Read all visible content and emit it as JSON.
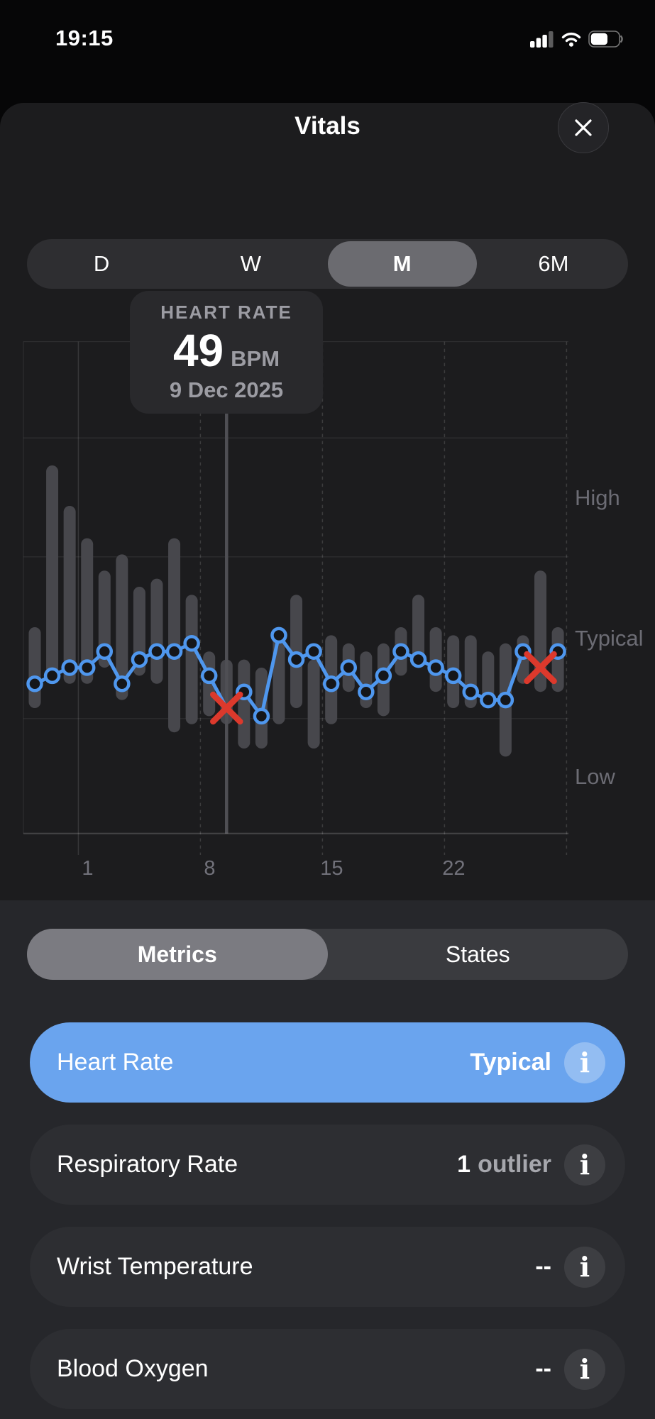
{
  "status_bar": {
    "time": "19:15",
    "signal_bars_filled": 3,
    "signal_bars_total": 4,
    "wifi_strength": "full",
    "battery_fill": 0.62
  },
  "header": {
    "title": "Vitals",
    "close_icon": "x"
  },
  "range_selector": {
    "options": [
      "D",
      "W",
      "M",
      "6M"
    ],
    "selected": "M"
  },
  "tooltip": {
    "label": "HEART RATE",
    "value": "49",
    "unit": "BPM",
    "date": "9 Dec 2025"
  },
  "chart_data": {
    "type": "line",
    "title": "Heart Rate",
    "unit": "BPM",
    "legend_position": "none",
    "grid": true,
    "ylim_bpm": [
      33.5,
      94.3
    ],
    "gridlines_bpm": [
      94.3,
      82.4,
      67.7,
      47.7
    ],
    "zones": [
      {
        "label": "High",
        "bpm_range": [
          67.7,
          82.4
        ]
      },
      {
        "label": "Typical",
        "bpm_range": [
          47.7,
          67.7
        ]
      },
      {
        "label": "Low",
        "bpm_range": [
          33.5,
          47.7
        ]
      }
    ],
    "x_ticks": [
      {
        "point_index": 3,
        "label": "1",
        "style": "solid"
      },
      {
        "point_index": 10,
        "label": "8",
        "style": "dashed"
      },
      {
        "point_index": 17,
        "label": "15",
        "style": "dashed"
      },
      {
        "point_index": 24,
        "label": "22",
        "style": "dashed"
      },
      {
        "point_index": 31,
        "label": "",
        "style": "dashed"
      }
    ],
    "selected_point_index": 11,
    "selected_point": {
      "date": "9 Dec 2025",
      "bpm": 49
    },
    "outlier_point_indices": [
      11,
      29
    ],
    "nightly_bpm": [
      52,
      53,
      54,
      54,
      56,
      52,
      55,
      56,
      56,
      57,
      53,
      49,
      51,
      48,
      58,
      55,
      56,
      52,
      54,
      51,
      53,
      56,
      55,
      54,
      53,
      51,
      50,
      50,
      56,
      54,
      56
    ],
    "range_bars_bpm": [
      [
        49,
        59
      ],
      [
        52,
        79
      ],
      [
        52,
        74
      ],
      [
        52,
        70
      ],
      [
        54,
        66
      ],
      [
        50,
        68
      ],
      [
        53,
        64
      ],
      [
        52,
        65
      ],
      [
        46,
        70
      ],
      [
        47,
        63
      ],
      [
        48,
        56
      ],
      [
        47,
        55
      ],
      [
        44,
        55
      ],
      [
        44,
        54
      ],
      [
        47,
        58
      ],
      [
        49,
        63
      ],
      [
        44,
        55
      ],
      [
        47,
        58
      ],
      [
        51,
        57
      ],
      [
        49,
        56
      ],
      [
        48,
        57
      ],
      [
        53,
        59
      ],
      [
        55,
        63
      ],
      [
        51,
        59
      ],
      [
        49,
        58
      ],
      [
        49,
        58
      ],
      [
        49,
        56
      ],
      [
        43,
        57
      ],
      [
        52,
        58
      ],
      [
        51,
        66
      ],
      [
        51,
        59
      ]
    ]
  },
  "tabs": {
    "options": [
      "Metrics",
      "States"
    ],
    "selected": "Metrics"
  },
  "metrics": {
    "info_glyph": "i",
    "items": [
      {
        "label": "Heart Rate",
        "highlighted": true,
        "value_parts": [
          {
            "text": "Typical",
            "style": "bold-white"
          }
        ]
      },
      {
        "label": "Respiratory Rate",
        "highlighted": false,
        "value_parts": [
          {
            "text": "1",
            "style": "bold-white"
          },
          {
            "text": "outlier",
            "style": "muted"
          }
        ]
      },
      {
        "label": "Wrist Temperature",
        "highlighted": false,
        "value_parts": [
          {
            "text": "--",
            "style": "bold-white"
          }
        ]
      },
      {
        "label": "Blood Oxygen",
        "highlighted": false,
        "value_parts": [
          {
            "text": "--",
            "style": "bold-white"
          }
        ]
      }
    ]
  },
  "colors": {
    "background": "#060607",
    "sheet": "#1c1c1e",
    "panel": "#26272b",
    "card": "#2d2e32",
    "accent_blue_row": "#6aa4ee",
    "chart_line_blue": "#4f97ee",
    "dot_fill": "#151619",
    "outlier_red": "#dc392c",
    "range_bar_gray": "#47474c",
    "stem_gray": "#4f4f54",
    "tick_label": "#71717a",
    "zone_label": "#6c6c74",
    "text_secondary": "#9c9ca3"
  }
}
